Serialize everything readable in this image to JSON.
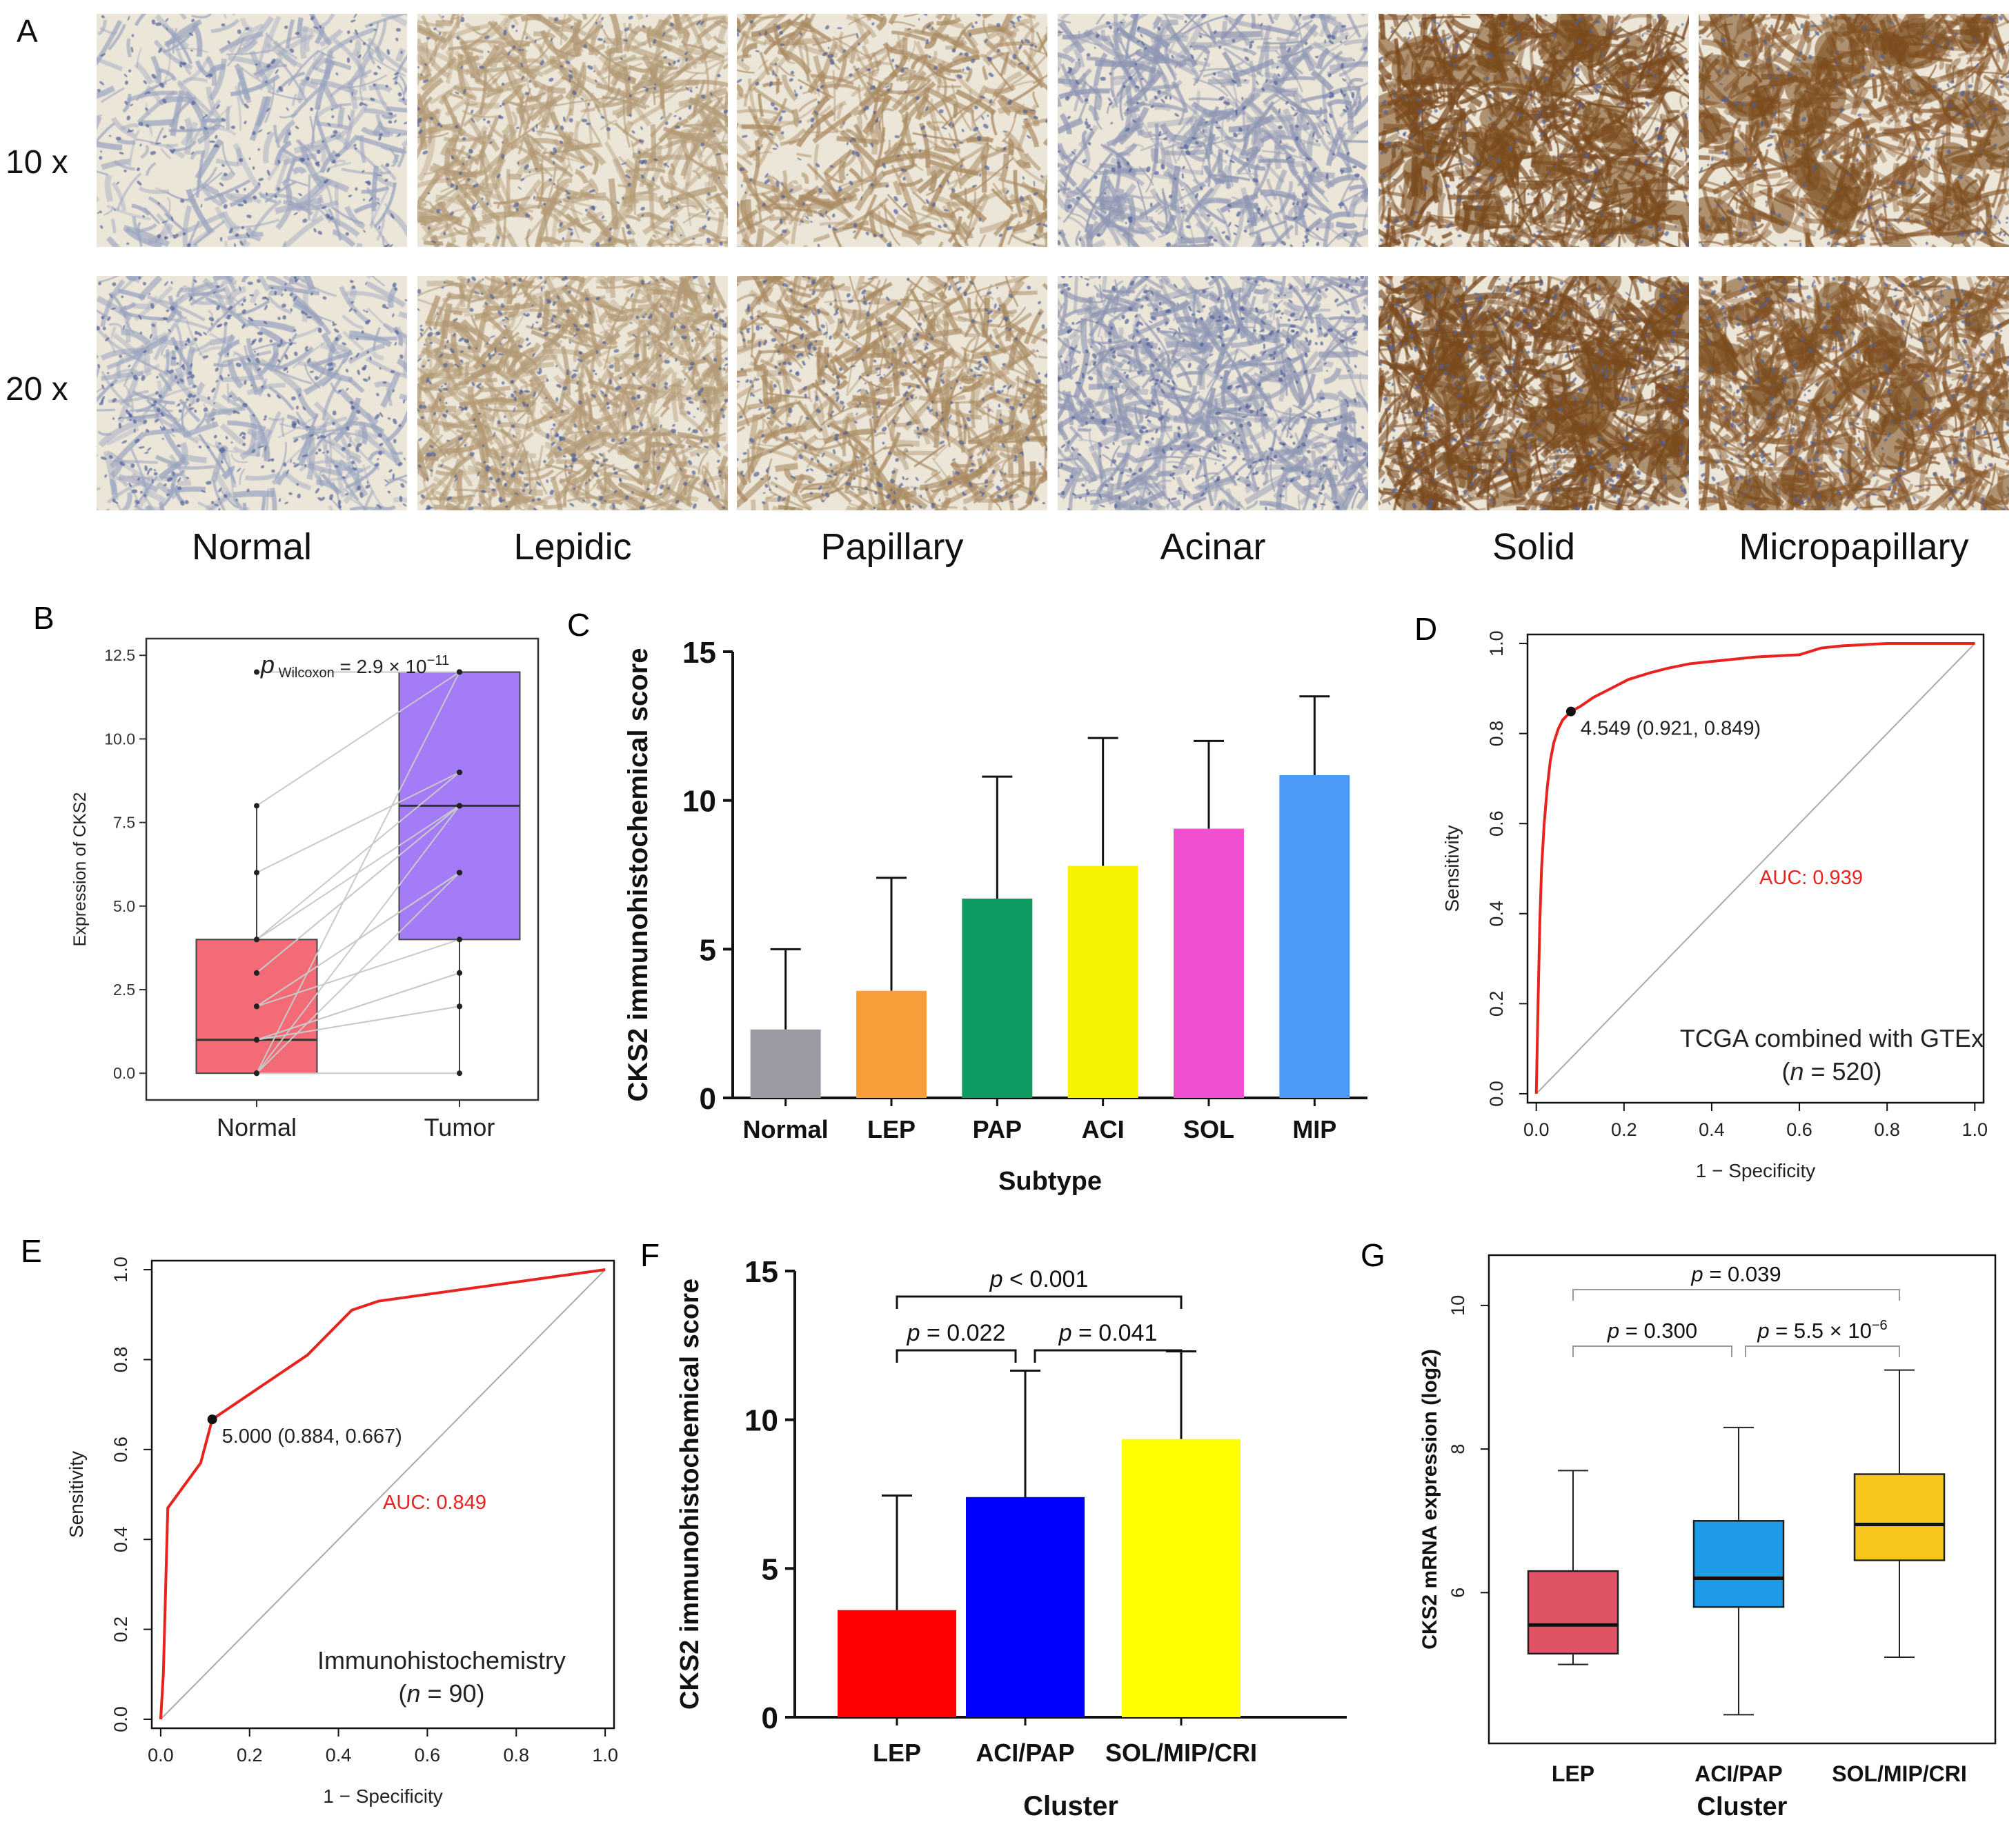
{
  "panel_a": {
    "label": "A",
    "magnifications": [
      "10 x",
      "20 x"
    ],
    "subtypes": [
      "Normal",
      "Lepidic",
      "Papillary",
      "Acinar",
      "Solid",
      "Micropapillary"
    ],
    "colors": {
      "background": "#ece6d8",
      "tissue": [
        "#9aa4c0",
        "#b39a76",
        "#a98a62",
        "#8e96b4",
        "#7a4a20",
        "#8a5a2e"
      ],
      "nuclei": "#4f5f9a",
      "stain": "#7a4a1c"
    }
  },
  "chart_data": [
    {
      "panel": "B",
      "type": "box",
      "title": "",
      "annotation": {
        "prefix": "p",
        "subscript": "Wilcoxon",
        "value": "= 2.9 × 10",
        "exponent": "−11"
      },
      "ylabel": "Expression of CKS2",
      "xlabel": "",
      "categories": [
        "Normal",
        "Tumor"
      ],
      "ylim": [
        -0.8,
        13
      ],
      "yticks": [
        "0.0",
        "2.5",
        "5.0",
        "7.5",
        "10.0",
        "12.5"
      ],
      "ytick_values": [
        0,
        2.5,
        5,
        7.5,
        10,
        12.5
      ],
      "boxes": [
        {
          "name": "Normal",
          "q1": 0,
          "median": 1,
          "q3": 4,
          "whisker_low": 0,
          "whisker_high": 8,
          "color": "#f46b78",
          "outliers": [
            12
          ]
        },
        {
          "name": "Tumor",
          "q1": 4,
          "median": 8,
          "q3": 12,
          "whisker_low": 0,
          "whisker_high": 12,
          "color": "#a57cf7",
          "outliers": []
        }
      ],
      "paired_points": {
        "normal": [
          12,
          8,
          6,
          4,
          4,
          3,
          3,
          2,
          2,
          2,
          1,
          1,
          1,
          1,
          0,
          0,
          0,
          0
        ],
        "tumor": [
          12,
          12,
          9,
          9,
          8,
          8,
          8,
          6,
          6,
          4,
          3,
          3,
          2,
          2,
          12,
          8,
          6,
          0
        ]
      }
    },
    {
      "panel": "C",
      "type": "bar",
      "categories": [
        "Normal",
        "LEP",
        "PAP",
        "ACI",
        "SOL",
        "MIP"
      ],
      "values": [
        2.3,
        3.6,
        6.7,
        7.8,
        9.05,
        10.85
      ],
      "errors_upper": [
        5.0,
        7.4,
        10.8,
        12.1,
        12.0,
        13.5
      ],
      "colors": [
        "#9a9aa2",
        "#f99d3b",
        "#0f9a62",
        "#f6f200",
        "#f14fd2",
        "#4c9af7"
      ],
      "xlabel": "Subtype",
      "ylabel": "CKS2 immunohistochemical score",
      "ylim": [
        0,
        15
      ],
      "yticks": [
        "0",
        "5",
        "10",
        "15"
      ],
      "ytick_values": [
        0,
        5,
        10,
        15
      ]
    },
    {
      "panel": "D",
      "type": "line",
      "title": "",
      "xlabel": "1 − Specificity",
      "ylabel": "Sensitivity",
      "xlim": [
        -0.02,
        1.02
      ],
      "ylim": [
        -0.02,
        1.02
      ],
      "xticks": [
        "0.0",
        "0.2",
        "0.4",
        "0.6",
        "0.8",
        "1.0"
      ],
      "yticks": [
        "0.0",
        "0.2",
        "0.4",
        "0.6",
        "0.8",
        "1.0"
      ],
      "tick_values": [
        0,
        0.2,
        0.4,
        0.6,
        0.8,
        1.0
      ],
      "x": [
        0,
        0.004,
        0.008,
        0.012,
        0.018,
        0.025,
        0.032,
        0.04,
        0.05,
        0.06,
        0.079,
        0.1,
        0.13,
        0.17,
        0.21,
        0.26,
        0.3,
        0.35,
        0.4,
        0.5,
        0.6,
        0.65,
        0.7,
        0.8,
        1.0
      ],
      "y": [
        0,
        0.2,
        0.38,
        0.5,
        0.6,
        0.68,
        0.74,
        0.78,
        0.81,
        0.83,
        0.849,
        0.86,
        0.88,
        0.9,
        0.92,
        0.935,
        0.945,
        0.955,
        0.96,
        0.97,
        0.975,
        0.99,
        0.995,
        1.0,
        1.0
      ],
      "series_color": "#e8231f",
      "marker": {
        "x": 0.079,
        "y": 0.849,
        "label": "4.549 (0.921, 0.849)"
      },
      "auc_label": "AUC: 0.939",
      "caption_line1": "TCGA combined with GTEx",
      "caption_n": "n",
      "caption_value": " = 520)",
      "caption_open": "("
    },
    {
      "panel": "E",
      "type": "line",
      "xlabel": "1 − Specificity",
      "ylabel": "Sensitivity",
      "xlim": [
        -0.02,
        1.02
      ],
      "ylim": [
        -0.02,
        1.02
      ],
      "xticks": [
        "0.0",
        "0.2",
        "0.4",
        "0.6",
        "0.8",
        "1.0"
      ],
      "yticks": [
        "0.0",
        "0.2",
        "0.4",
        "0.6",
        "0.8",
        "1.0"
      ],
      "tick_values": [
        0,
        0.2,
        0.4,
        0.6,
        0.8,
        1.0
      ],
      "x": [
        0,
        0.006,
        0.016,
        0.09,
        0.116,
        0.33,
        0.43,
        0.49,
        1.0
      ],
      "y": [
        0,
        0.1,
        0.47,
        0.57,
        0.667,
        0.81,
        0.91,
        0.93,
        1.0
      ],
      "series_color": "#e8231f",
      "marker": {
        "x": 0.116,
        "y": 0.667,
        "label": "5.000 (0.884, 0.667)"
      },
      "auc_label": "AUC: 0.849",
      "caption_line1": "Immunohistochemistry",
      "caption_n": "n",
      "caption_value": " = 90)",
      "caption_open": "("
    },
    {
      "panel": "F",
      "type": "bar",
      "categories": [
        "LEP",
        "ACI/PAP",
        "SOL/MIP/CRI"
      ],
      "values": [
        3.6,
        7.4,
        9.35
      ],
      "errors_upper": [
        7.45,
        11.65,
        12.3
      ],
      "colors": [
        "#ff0000",
        "#0000ff",
        "#ffff00"
      ],
      "xlabel": "Cluster",
      "ylabel": "CKS2 immunohistochemical score",
      "ylim": [
        0,
        15
      ],
      "yticks": [
        "0",
        "5",
        "10",
        "15"
      ],
      "ytick_values": [
        0,
        5,
        10,
        15
      ],
      "comparisons": [
        {
          "from": 0,
          "to": 2,
          "level": 2,
          "label_p": "p",
          "label_rest": " < 0.001"
        },
        {
          "from": 0,
          "to": 1,
          "level": 1,
          "label_p": "p",
          "label_rest": " = 0.022"
        },
        {
          "from": 1,
          "to": 2,
          "level": 1,
          "label_p": "p",
          "label_rest": " = 0.041"
        }
      ]
    },
    {
      "panel": "G",
      "type": "box",
      "categories": [
        "LEP",
        "ACI/PAP",
        "SOL/MIP/CRI"
      ],
      "xlabel": "Cluster",
      "ylabel": "CKS2 mRNA expression (log2)",
      "ylim": [
        3.9,
        10.7
      ],
      "yticks": [
        "6",
        "8",
        "10"
      ],
      "ytick_values": [
        6,
        8,
        10
      ],
      "boxes": [
        {
          "name": "LEP",
          "q1": 5.15,
          "median": 5.55,
          "q3": 6.3,
          "whisker_low": 5.0,
          "whisker_high": 7.7,
          "color": "#e05266"
        },
        {
          "name": "ACI/PAP",
          "q1": 5.8,
          "median": 6.2,
          "q3": 7.0,
          "whisker_low": 4.3,
          "whisker_high": 8.3,
          "color": "#1e9be8"
        },
        {
          "name": "SOL/MIP/CRI",
          "q1": 6.45,
          "median": 6.95,
          "q3": 7.65,
          "whisker_low": 5.1,
          "whisker_high": 9.1,
          "color": "#f7c51b"
        }
      ],
      "comparisons": [
        {
          "from": 0,
          "to": 2,
          "level": 2,
          "label_p": "p",
          "label_rest": " = 0.039",
          "exponent": ""
        },
        {
          "from": 0,
          "to": 1,
          "level": 1,
          "label_p": "p",
          "label_rest": " = 0.300",
          "exponent": ""
        },
        {
          "from": 1,
          "to": 2,
          "level": 1,
          "label_p": "p",
          "label_rest": " = 5.5 × 10",
          "exponent": "−6"
        }
      ]
    }
  ]
}
